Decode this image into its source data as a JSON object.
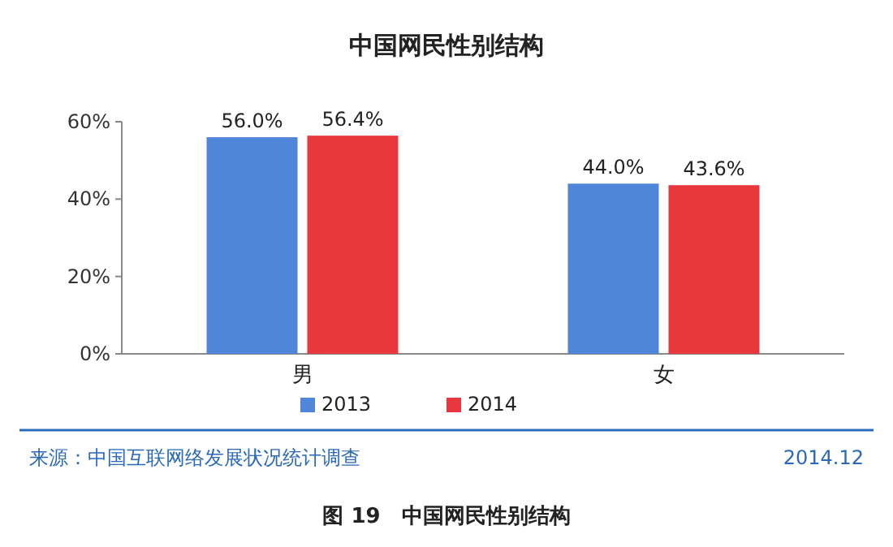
{
  "chart_data": {
    "type": "bar",
    "title": "中国网民性别结构",
    "categories": [
      "男",
      "女"
    ],
    "series": [
      {
        "name": "2013",
        "color": "#4f86d9",
        "values": [
          56.0,
          44.0
        ],
        "value_labels": [
          "56.0%",
          "44.0%"
        ]
      },
      {
        "name": "2014",
        "color": "#e8383d",
        "values": [
          56.4,
          43.6
        ],
        "value_labels": [
          "56.4%",
          "43.6%"
        ]
      }
    ],
    "ylim": [
      0,
      60
    ],
    "yticks": [
      {
        "value": 0,
        "label": "0%"
      },
      {
        "value": 20,
        "label": "20%"
      },
      {
        "value": 40,
        "label": "40%"
      },
      {
        "value": 60,
        "label": "60%"
      }
    ],
    "legend": "bottom",
    "annotations": [
      "来源：中国互联网络发展状况统计调查",
      "2014.12",
      "图 19　中国网民性别结构"
    ]
  }
}
